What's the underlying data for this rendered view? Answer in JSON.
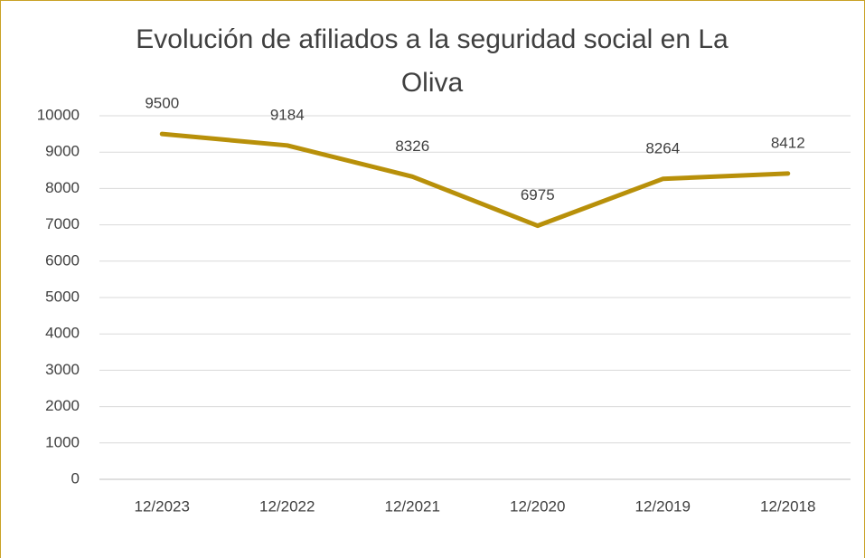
{
  "chart_data": {
    "type": "line",
    "title": "Evolución de afiliados a la seguridad social en La Oliva",
    "categories": [
      "12/2023",
      "12/2022",
      "12/2021",
      "12/2020",
      "12/2019",
      "12/2018"
    ],
    "values": [
      9500,
      9184,
      8326,
      6975,
      8264,
      8412
    ],
    "color": "#b8900a",
    "ylim": [
      0,
      10000
    ],
    "yticks": [
      0,
      1000,
      2000,
      3000,
      4000,
      5000,
      6000,
      7000,
      8000,
      9000,
      10000
    ],
    "grid": true
  }
}
